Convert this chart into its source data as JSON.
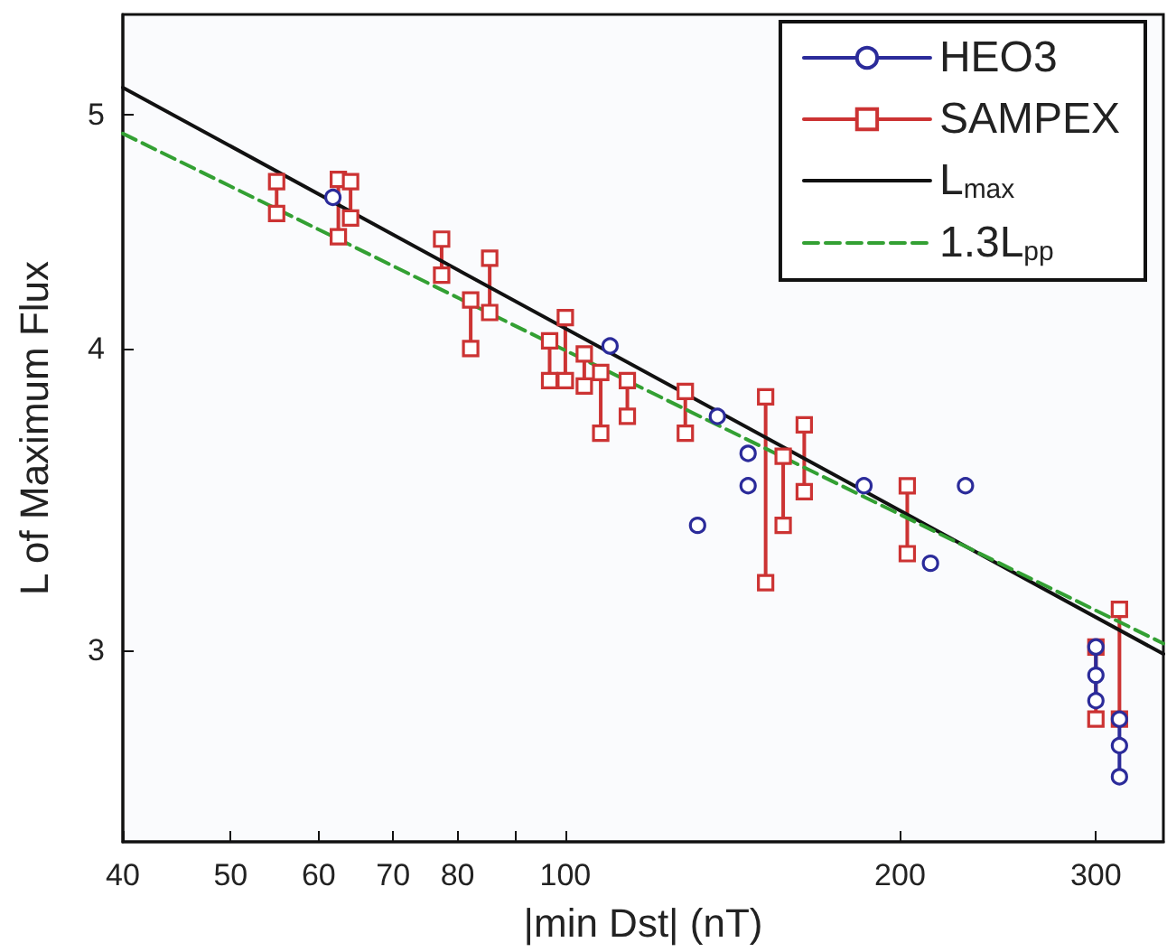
{
  "chart_data": {
    "type": "line",
    "xlabel": "|min Dst| (nT)",
    "ylabel": "L of Maximum Flux",
    "log": "xy",
    "grid": false,
    "legend": "top right",
    "xlim": [
      40,
      345
    ],
    "ylim": [
      2.5,
      5.5
    ],
    "xticks": [
      40,
      50,
      60,
      70,
      80,
      {
        "value": 90,
        "label": null
      },
      100,
      200,
      300
    ],
    "yticks": [
      3,
      4,
      5
    ],
    "series": [
      {
        "name": "HEO3",
        "color": "#2b2b9a",
        "marker": "circle",
        "line_style": "solid",
        "x": [
          61.8,
          null,
          109.7,
          null,
          137,
          null,
          146,
          null,
          146,
          null,
          131.5,
          null,
          185.6,
          null,
          213,
          null,
          229,
          null,
          300,
          300,
          300,
          null,
          315,
          315,
          315
        ],
        "values": [
          4.62,
          null,
          4.01,
          null,
          3.75,
          null,
          3.62,
          null,
          3.51,
          null,
          3.38,
          null,
          3.51,
          null,
          3.26,
          null,
          3.51,
          null,
          3.01,
          2.93,
          2.86,
          null,
          2.81,
          2.74,
          2.66
        ]
      },
      {
        "name": "SAMPEX",
        "color": "#cc3333",
        "marker": "square",
        "line_style": "solid",
        "x": [
          55,
          55,
          null,
          62.5,
          62.5,
          null,
          64.1,
          64.1,
          null,
          77.4,
          77.4,
          null,
          82.2,
          82.2,
          null,
          85.5,
          85.5,
          null,
          96.8,
          96.8,
          null,
          100,
          100,
          null,
          104,
          104,
          null,
          107.6,
          107.6,
          null,
          113.7,
          113.7,
          null,
          128.2,
          128.2,
          null,
          151.4,
          151.4,
          null,
          157,
          157,
          null,
          164,
          164,
          null,
          203,
          203,
          null,
          300,
          300,
          null,
          315,
          315
        ],
        "values": [
          4.69,
          4.55,
          null,
          4.7,
          4.45,
          null,
          4.69,
          4.53,
          null,
          4.44,
          4.29,
          null,
          4.19,
          4.0,
          null,
          4.36,
          4.14,
          null,
          4.03,
          3.88,
          null,
          4.12,
          3.88,
          null,
          3.98,
          3.86,
          null,
          3.91,
          3.69,
          null,
          3.88,
          3.75,
          null,
          3.84,
          3.69,
          null,
          3.82,
          3.2,
          null,
          3.61,
          3.38,
          null,
          3.72,
          3.49,
          null,
          3.51,
          3.29,
          null,
          3.01,
          2.81,
          null,
          3.12,
          2.81
        ]
      },
      {
        "name": "L$_{max}$",
        "color": "#111111",
        "marker": "none",
        "line_style": "solid",
        "x": [
          40,
          345
        ],
        "values": [
          5.13,
          2.99
        ]
      },
      {
        "name": "1.3L$_{pp}$",
        "color": "#33a033",
        "marker": "none",
        "line_style": "dashed",
        "x": [
          40,
          345
        ],
        "values": [
          4.91,
          3.02
        ]
      }
    ]
  }
}
